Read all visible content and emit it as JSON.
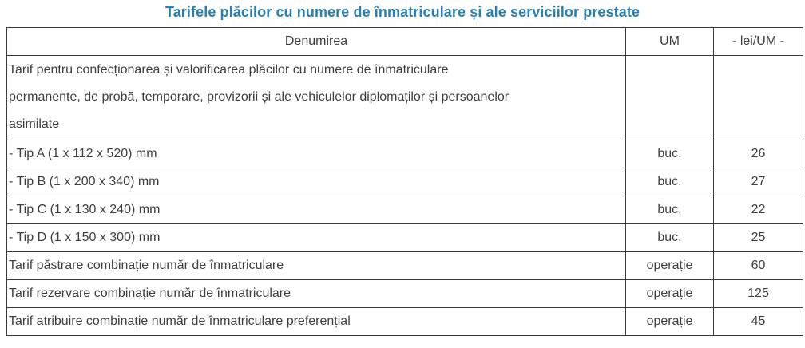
{
  "title": "Tarifele plăcilor cu numere de înmatriculare și ale serviciilor prestate",
  "colors": {
    "accent": "#2880b4",
    "text": "#3f3f3f",
    "border": "#3a3a3a"
  },
  "table": {
    "headers": {
      "denumire": "Denumirea",
      "um": "UM",
      "lei": "- lei/UM -"
    },
    "rows": [
      {
        "denumire": "Tarif pentru confecționarea și valorificarea plăcilor cu numere de înmatriculare permanente, de probă, temporare, provizorii și ale vehiculelor diplomaților și persoanelor asimilate",
        "denumire_lines": [
          "Tarif pentru confecționarea și valorificarea plăcilor cu numere de înmatriculare",
          "permanente, de probă, temporare, provizorii și ale vehiculelor diplomaților și persoanelor",
          "asimilate"
        ],
        "um": "",
        "lei": ""
      },
      {
        "denumire": "- Tip A (1 x 112 x 520) mm",
        "um": "buc.",
        "lei": "26"
      },
      {
        "denumire": "- Tip B (1 x 200 x 340) mm",
        "um": "buc.",
        "lei": "27"
      },
      {
        "denumire": "- Tip C (1 x 130 x 240) mm",
        "um": "buc.",
        "lei": "22"
      },
      {
        "denumire": "- Tip D (1 x 150 x 300) mm",
        "um": "buc.",
        "lei": "25"
      },
      {
        "denumire": "Tarif păstrare combinație număr de înmatriculare",
        "um": "operație",
        "lei": "60"
      },
      {
        "denumire": "Tarif rezervare combinație număr de înmatriculare",
        "um": "operație",
        "lei": "125"
      },
      {
        "denumire": "Tarif atribuire combinație număr de înmatriculare preferențial",
        "um": "operație",
        "lei": "45"
      }
    ]
  }
}
